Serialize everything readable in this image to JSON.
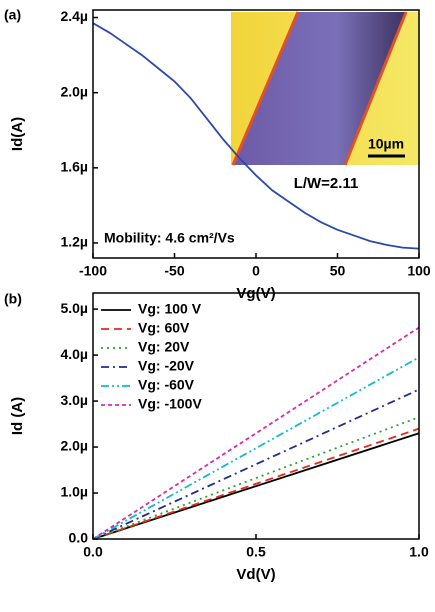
{
  "chart_data": [
    {
      "type": "line",
      "panel_label": "(a)",
      "x_label": "Vg(V)",
      "y_label": "Id(A)",
      "annotation": "Mobility:  4.6 cm²/Vs",
      "inset_label": "L/W=2.11",
      "scale_bar_label": "10µm",
      "xlim": [
        -100,
        100
      ],
      "xticks": [
        -100,
        -50,
        0,
        50,
        100
      ],
      "ylim": [
        1.12e-06,
        2.44e-06
      ],
      "yticks": [
        {
          "value": 1.2e-06,
          "label": "1.2µ"
        },
        {
          "value": 1.6e-06,
          "label": "1.6µ"
        },
        {
          "value": 2e-06,
          "label": "2.0µ"
        },
        {
          "value": 2.4e-06,
          "label": "2.4µ"
        }
      ],
      "x": [
        -100,
        -90,
        -80,
        -70,
        -60,
        -50,
        -40,
        -30,
        -20,
        -10,
        0,
        10,
        20,
        30,
        40,
        50,
        60,
        70,
        80,
        90,
        100
      ],
      "series": [
        {
          "color": "#2b4aa8",
          "dash": "solid",
          "values": [
            2.37e-06,
            2.32e-06,
            2.26e-06,
            2.2e-06,
            2.13e-06,
            2.06e-06,
            1.97e-06,
            1.86e-06,
            1.75e-06,
            1.65e-06,
            1.56e-06,
            1.48e-06,
            1.42e-06,
            1.36e-06,
            1.31e-06,
            1.27e-06,
            1.24e-06,
            1.21e-06,
            1.19e-06,
            1.175e-06,
            1.17e-06
          ]
        }
      ]
    },
    {
      "type": "line",
      "panel_label": "(b)",
      "x_label": "Vd(V)",
      "y_label": "Id (A)",
      "xlim": [
        0,
        1
      ],
      "xticks": [
        {
          "value": 0,
          "label": "0.0"
        },
        0.5,
        {
          "value": 1,
          "label": "1.0"
        }
      ],
      "ylim": [
        0,
        5.35e-06
      ],
      "yticks": [
        {
          "value": 0,
          "label": "0.0"
        },
        {
          "value": 1e-06,
          "label": "1.0µ"
        },
        {
          "value": 2e-06,
          "label": "2.0µ"
        },
        {
          "value": 3e-06,
          "label": "3.0µ"
        },
        {
          "value": 4e-06,
          "label": "4.0µ"
        },
        {
          "value": 5e-06,
          "label": "5.0µ"
        }
      ],
      "x": [
        0,
        1
      ],
      "legend": "upper left",
      "series": [
        {
          "name": "Vg: 100 V",
          "color": "#000000",
          "dash": "solid",
          "values": [
            0,
            2.3e-06
          ]
        },
        {
          "name": "Vg: 60V",
          "color": "#e8291c",
          "dash": "dashed",
          "values": [
            0,
            2.4e-06
          ]
        },
        {
          "name": "Vg: 20V",
          "color": "#2ca02c",
          "dash": "dotted",
          "values": [
            0,
            2.65e-06
          ]
        },
        {
          "name": "Vg: -20V",
          "color": "#1f2d8f",
          "dash": "dashdot",
          "values": [
            0,
            3.25e-06
          ]
        },
        {
          "name": "Vg: -60V",
          "color": "#17b8cf",
          "dash": "dashdotdot",
          "values": [
            0,
            3.95e-06
          ]
        },
        {
          "name": "Vg: -100V",
          "color": "#d62ca8",
          "dash": "shortdash",
          "values": [
            0,
            4.6e-06
          ]
        }
      ]
    }
  ]
}
